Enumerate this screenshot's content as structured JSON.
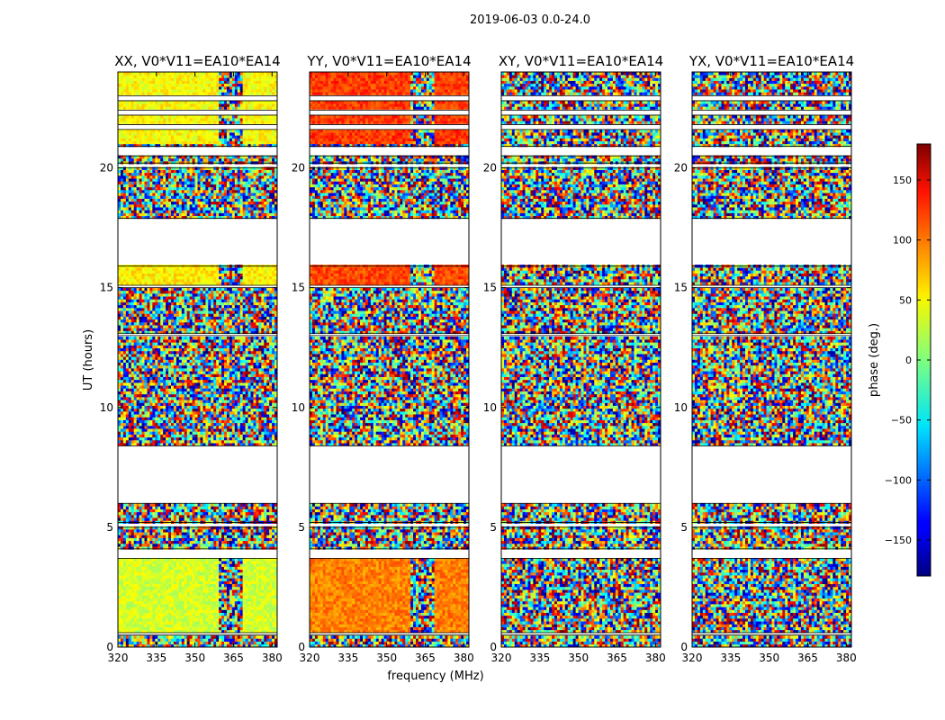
{
  "chart_data": {
    "type": "heatmap",
    "suptitle": "2019-06-03 0.0-24.0",
    "xlabel": "frequency (MHz)",
    "ylabel": "UT (hours)",
    "xlim": [
      320,
      382
    ],
    "ylim": [
      0,
      24
    ],
    "x_ticks": [
      "320",
      "335",
      "350",
      "365",
      "380"
    ],
    "y_ticks": [
      "0",
      "5",
      "10",
      "15",
      "20"
    ],
    "panels": [
      {
        "title": "XX, V0*V11=EA10*EA14",
        "polarization": "XX"
      },
      {
        "title": "YY, V0*V11=EA10*EA14",
        "polarization": "YY"
      },
      {
        "title": "XY, V0*V11=EA10*EA14",
        "polarization": "XY"
      },
      {
        "title": "YX, V0*V11=EA10*EA14",
        "polarization": "YX"
      }
    ],
    "colorbar": {
      "label": "phase (deg.)",
      "range": [
        -180,
        180
      ],
      "ticks": [
        "150",
        "100",
        "50",
        "0",
        "−50",
        "−100",
        "−150"
      ],
      "colormap": "jet"
    },
    "flagged_gaps_hours": [
      [
        6.0,
        8.4
      ],
      [
        15.9,
        17.9
      ]
    ],
    "data_blocks_hours": [
      [
        0.0,
        0.5
      ],
      [
        0.6,
        3.7
      ],
      [
        4.1,
        5.0
      ],
      [
        5.2,
        6.0
      ],
      [
        8.4,
        13.0
      ],
      [
        13.1,
        15.0
      ],
      [
        15.1,
        15.9
      ],
      [
        17.9,
        20.0
      ],
      [
        20.2,
        20.5
      ],
      [
        20.9,
        21.6
      ],
      [
        21.8,
        22.2
      ],
      [
        22.4,
        22.8
      ],
      [
        23.0,
        24.0
      ]
    ],
    "coherent_phase_blocks": [
      {
        "panel": "XX",
        "ut_range": [
          0.5,
          3.7
        ],
        "phase_deg": 30
      },
      {
        "panel": "XX",
        "ut_range": [
          1.8,
          2.6
        ],
        "phase_deg": 0
      },
      {
        "panel": "XX",
        "ut_range": [
          15.0,
          15.9
        ],
        "phase_deg": 50
      },
      {
        "panel": "XX",
        "ut_range": [
          21.0,
          24.0
        ],
        "phase_deg": 45
      },
      {
        "panel": "YY",
        "ut_range": [
          0.5,
          3.7
        ],
        "phase_deg": 90
      },
      {
        "panel": "YY",
        "ut_range": [
          15.0,
          15.9
        ],
        "phase_deg": 110
      },
      {
        "panel": "YY",
        "ut_range": [
          21.0,
          24.0
        ],
        "phase_deg": 115
      }
    ]
  }
}
